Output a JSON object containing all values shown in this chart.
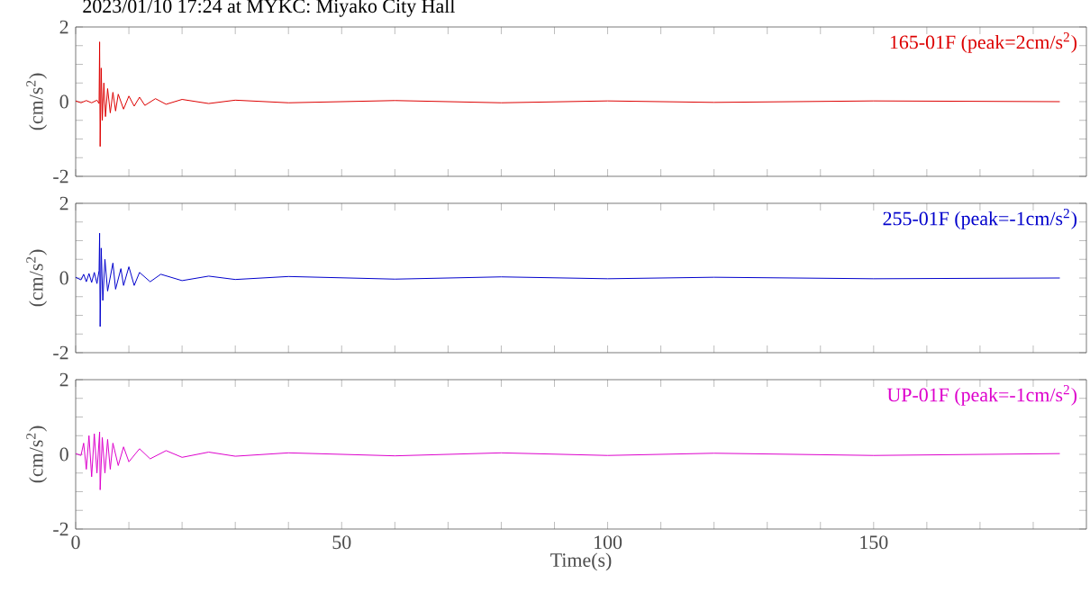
{
  "chart_data": [
    {
      "type": "line",
      "title": "2023/01/10 17:24 at MYKC: Miyako City Hall",
      "ylabel": "(cm/s$^{2}$)",
      "xlim": [
        0,
        190
      ],
      "ylim": [
        -2,
        2
      ],
      "tick_labels": "y",
      "xticks": [
        0,
        {
          "value": 10,
          "label": null
        },
        {
          "value": 20,
          "label": null
        },
        {
          "value": 30,
          "label": null
        },
        {
          "value": 40,
          "label": null
        },
        50,
        {
          "value": 60,
          "label": null
        },
        {
          "value": 70,
          "label": null
        },
        {
          "value": 80,
          "label": null
        },
        {
          "value": 90,
          "label": null
        },
        100,
        {
          "value": 110,
          "label": null
        },
        {
          "value": 120,
          "label": null
        },
        {
          "value": 130,
          "label": null
        },
        {
          "value": 140,
          "label": null
        },
        150,
        {
          "value": 160,
          "label": null
        },
        {
          "value": 170,
          "label": null
        },
        {
          "value": 180,
          "label": null
        }
      ],
      "yticks": [
        -2,
        {
          "value": -1.5,
          "label": null
        },
        {
          "value": -1,
          "label": null
        },
        {
          "value": -0.5,
          "label": null
        },
        0,
        {
          "value": 0.5,
          "label": null
        },
        {
          "value": 1,
          "label": null
        },
        {
          "value": 1.5,
          "label": null
        },
        2
      ],
      "series": [
        {
          "name": "165-01F (peak=2cm/s$^{2}$)",
          "color": "#dd0000",
          "x": [
            0,
            1,
            2,
            3,
            4,
            4.4,
            4.5,
            4.6,
            4.8,
            5.0,
            5.3,
            5.6,
            6,
            6.5,
            7,
            7.5,
            8,
            9,
            10,
            11,
            12,
            13,
            15,
            17,
            20,
            25,
            30,
            40,
            60,
            80,
            100,
            120,
            150,
            185
          ],
          "values": [
            0.02,
            -0.03,
            0.03,
            -0.03,
            0.04,
            -0.05,
            1.6,
            -1.2,
            0.9,
            -0.5,
            0.5,
            -0.4,
            0.35,
            -0.3,
            0.25,
            -0.25,
            0.2,
            -0.2,
            0.15,
            -0.12,
            0.12,
            -0.1,
            0.08,
            -0.07,
            0.06,
            -0.05,
            0.04,
            -0.03,
            0.03,
            -0.03,
            0.02,
            -0.02,
            0.02,
            0
          ]
        }
      ]
    },
    {
      "type": "line",
      "ylabel": "(cm/s$^{2}$)",
      "xlim": [
        0,
        190
      ],
      "ylim": [
        -2,
        2
      ],
      "tick_labels": "y",
      "xticks": [
        0,
        {
          "value": 10,
          "label": null
        },
        {
          "value": 20,
          "label": null
        },
        {
          "value": 30,
          "label": null
        },
        {
          "value": 40,
          "label": null
        },
        50,
        {
          "value": 60,
          "label": null
        },
        {
          "value": 70,
          "label": null
        },
        {
          "value": 80,
          "label": null
        },
        {
          "value": 90,
          "label": null
        },
        100,
        {
          "value": 110,
          "label": null
        },
        {
          "value": 120,
          "label": null
        },
        {
          "value": 130,
          "label": null
        },
        {
          "value": 140,
          "label": null
        },
        150,
        {
          "value": 160,
          "label": null
        },
        {
          "value": 170,
          "label": null
        },
        {
          "value": 180,
          "label": null
        }
      ],
      "yticks": [
        -2,
        {
          "value": -1.5,
          "label": null
        },
        {
          "value": -1,
          "label": null
        },
        {
          "value": -0.5,
          "label": null
        },
        0,
        {
          "value": 0.5,
          "label": null
        },
        {
          "value": 1,
          "label": null
        },
        {
          "value": 1.5,
          "label": null
        },
        2
      ],
      "series": [
        {
          "name": "255-01F (peak=-1cm/s$^{2}$)",
          "color": "#0000cc",
          "x": [
            0,
            1,
            1.5,
            2,
            2.5,
            3,
            3.5,
            4,
            4.4,
            4.5,
            4.6,
            4.8,
            5.1,
            5.5,
            6,
            7,
            7.5,
            8.5,
            9,
            10,
            11,
            12,
            14,
            16,
            20,
            25,
            30,
            40,
            60,
            80,
            100,
            120,
            150,
            185
          ],
          "values": [
            0.02,
            -0.05,
            0.1,
            -0.1,
            0.12,
            -0.12,
            0.15,
            -0.15,
            0.2,
            1.2,
            -1.3,
            0.8,
            -0.6,
            0.5,
            -0.35,
            0.4,
            -0.3,
            0.25,
            -0.2,
            0.3,
            -0.2,
            0.15,
            -0.1,
            0.1,
            -0.07,
            0.05,
            -0.04,
            0.04,
            -0.03,
            0.03,
            -0.02,
            0.02,
            -0.02,
            0
          ]
        }
      ]
    },
    {
      "type": "line",
      "ylabel": "(cm/s$^{2}$)",
      "xlabel": "Time(s)",
      "xlim": [
        0,
        190
      ],
      "ylim": [
        -2,
        2
      ],
      "xticks": [
        0,
        {
          "value": 10,
          "label": null
        },
        {
          "value": 20,
          "label": null
        },
        {
          "value": 30,
          "label": null
        },
        {
          "value": 40,
          "label": null
        },
        50,
        {
          "value": 60,
          "label": null
        },
        {
          "value": 70,
          "label": null
        },
        {
          "value": 80,
          "label": null
        },
        {
          "value": 90,
          "label": null
        },
        100,
        {
          "value": 110,
          "label": null
        },
        {
          "value": 120,
          "label": null
        },
        {
          "value": 130,
          "label": null
        },
        {
          "value": 140,
          "label": null
        },
        150,
        {
          "value": 160,
          "label": null
        },
        {
          "value": 170,
          "label": null
        },
        {
          "value": 180,
          "label": null
        }
      ],
      "yticks": [
        -2,
        {
          "value": -1.5,
          "label": null
        },
        {
          "value": -1,
          "label": null
        },
        {
          "value": -0.5,
          "label": null
        },
        0,
        {
          "value": 0.5,
          "label": null
        },
        {
          "value": 1,
          "label": null
        },
        {
          "value": 1.5,
          "label": null
        },
        2
      ],
      "series": [
        {
          "name": "UP-01F (peak=-1cm/s$^{2}$)",
          "color": "#dd00cc",
          "x": [
            0,
            1,
            1.5,
            2,
            2.5,
            3,
            3.5,
            4,
            4.5,
            4.6,
            5,
            5.5,
            6,
            6.5,
            7,
            8,
            9,
            10,
            12,
            14,
            17,
            20,
            25,
            30,
            40,
            60,
            80,
            100,
            120,
            150,
            185
          ],
          "values": [
            0.02,
            -0.03,
            0.3,
            -0.4,
            0.5,
            -0.6,
            0.55,
            -0.5,
            0.6,
            -0.95,
            0.45,
            -0.5,
            0.4,
            -0.4,
            0.3,
            -0.3,
            0.2,
            -0.2,
            0.15,
            -0.12,
            0.1,
            -0.08,
            0.06,
            -0.05,
            0.04,
            -0.04,
            0.04,
            -0.03,
            0.03,
            -0.03,
            0.02
          ]
        }
      ]
    }
  ]
}
